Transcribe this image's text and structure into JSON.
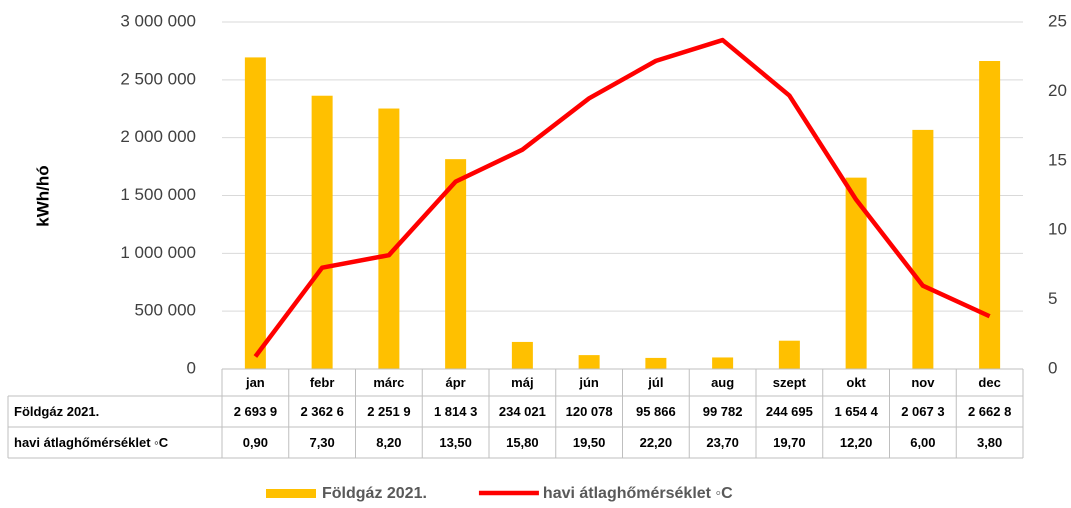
{
  "chart_data": {
    "type": "bar",
    "y_label": "kWh/hó",
    "categories": [
      "jan",
      "febr",
      "márc",
      "ápr",
      "máj",
      "jún",
      "júl",
      "aug",
      "szept",
      "okt",
      "nov",
      "dec"
    ],
    "series": [
      {
        "name": "Földgáz 2021.",
        "color": "#ffc000",
        "values": [
          2693900,
          2362600,
          2251900,
          1814300,
          234021,
          120078,
          95866,
          99782,
          244695,
          1654400,
          2067300,
          2662800
        ],
        "value_labels": [
          "2 693 9",
          "2 362 6",
          "2 251 9",
          "1 814 3",
          "234 021",
          "120 078",
          "95 866",
          "99 782",
          "244 695",
          "1 654 4",
          "2 067 3",
          "2 662 8"
        ]
      },
      {
        "name": "havi átlaghőmérséklet ◦C",
        "color": "#ff0000",
        "type": "line",
        "axis": "y2",
        "values": [
          0.9,
          7.3,
          8.2,
          13.5,
          15.8,
          19.5,
          22.2,
          23.7,
          19.7,
          12.2,
          6.0,
          3.8
        ],
        "value_labels": [
          "0,90",
          "7,30",
          "8,20",
          "13,50",
          "15,80",
          "19,50",
          "22,20",
          "23,70",
          "19,70",
          "12,20",
          "6,00",
          "3,80"
        ]
      }
    ],
    "ylim": [
      0,
      3000000
    ],
    "yticks": [
      0,
      {
        "value": 500000,
        "label": "500 000"
      },
      {
        "value": 1000000,
        "label": "1 000 000"
      },
      {
        "value": 1500000,
        "label": "1 500 000"
      },
      {
        "value": 2000000,
        "label": "2 000 000"
      },
      {
        "value": 2500000,
        "label": "2 500 000"
      },
      {
        "value": 3000000,
        "label": "3 000 000"
      }
    ],
    "y2lim": [
      0,
      25
    ],
    "y2ticks": [
      0,
      5,
      10,
      15,
      20,
      25
    ],
    "grid": true,
    "data_table": true,
    "legend": "bottom"
  }
}
